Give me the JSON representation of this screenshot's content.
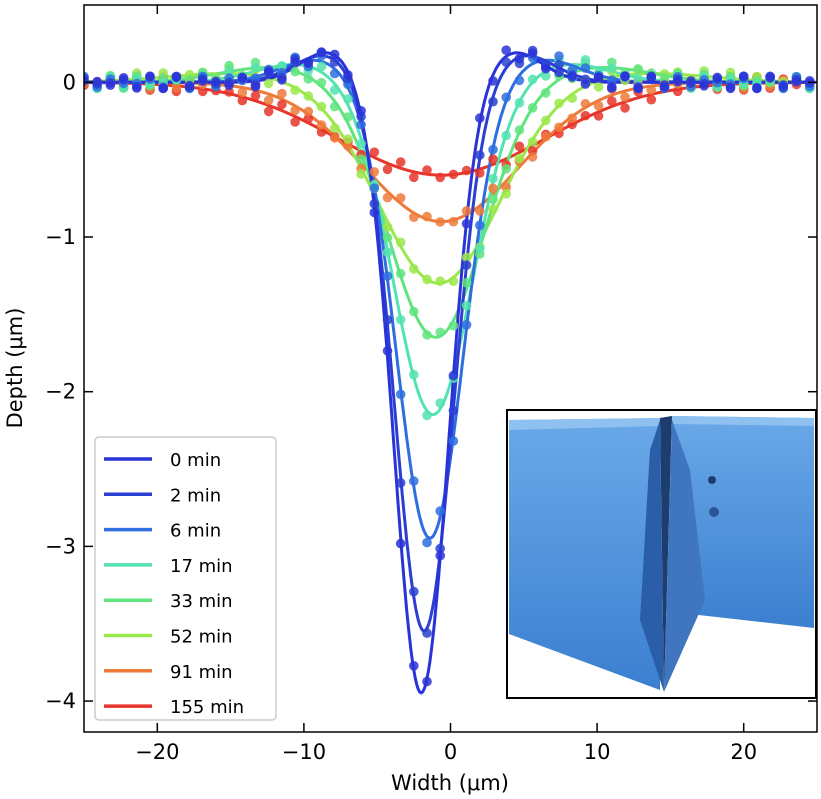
{
  "chart_data": {
    "type": "line",
    "title": "",
    "xlabel": "Width (μm)",
    "ylabel": "Depth (μm)",
    "xlim": [
      -25,
      25
    ],
    "ylim": [
      -4.2,
      0.5
    ],
    "xticks": [
      -20,
      -10,
      0,
      10,
      20
    ],
    "xtick_labels": [
      "−20",
      "−10",
      "0",
      "10",
      "20"
    ],
    "yticks": [
      0,
      -1,
      -2,
      -3,
      -4
    ],
    "ytick_labels": [
      "0",
      "−1",
      "−2",
      "−3",
      "−4"
    ],
    "grid": false,
    "legend_position": "bottom-left",
    "series": [
      {
        "name": "0 min",
        "color": "#2a33d8",
        "depth": -3.95,
        "center": -2.0,
        "width": 2.6,
        "rim": 0.2
      },
      {
        "name": "2 min",
        "color": "#2b3fd2",
        "depth": -3.55,
        "center": -1.8,
        "width": 2.8,
        "rim": 0.18
      },
      {
        "name": "6 min",
        "color": "#2f6ee0",
        "depth": -2.95,
        "center": -1.4,
        "width": 3.2,
        "rim": 0.15
      },
      {
        "name": "17 min",
        "color": "#52e3b0",
        "depth": -2.15,
        "center": -1.2,
        "width": 3.8,
        "rim": 0.12
      },
      {
        "name": "33 min",
        "color": "#5fe47e",
        "depth": -1.65,
        "center": -1.0,
        "width": 4.6,
        "rim": 0.1
      },
      {
        "name": "52 min",
        "color": "#9be84a",
        "depth": -1.3,
        "center": -0.8,
        "width": 5.8,
        "rim": 0.06
      },
      {
        "name": "91 min",
        "color": "#ee7a3a",
        "depth": -0.9,
        "center": -0.6,
        "width": 7.5,
        "rim": 0.0
      },
      {
        "name": "155 min",
        "color": "#e8352a",
        "depth": -0.6,
        "center": -0.6,
        "width": 10.0,
        "rim": 0.0
      }
    ],
    "inset": {
      "description_icon": "3d-surface-trench-image",
      "color": "#4a90d9"
    }
  }
}
